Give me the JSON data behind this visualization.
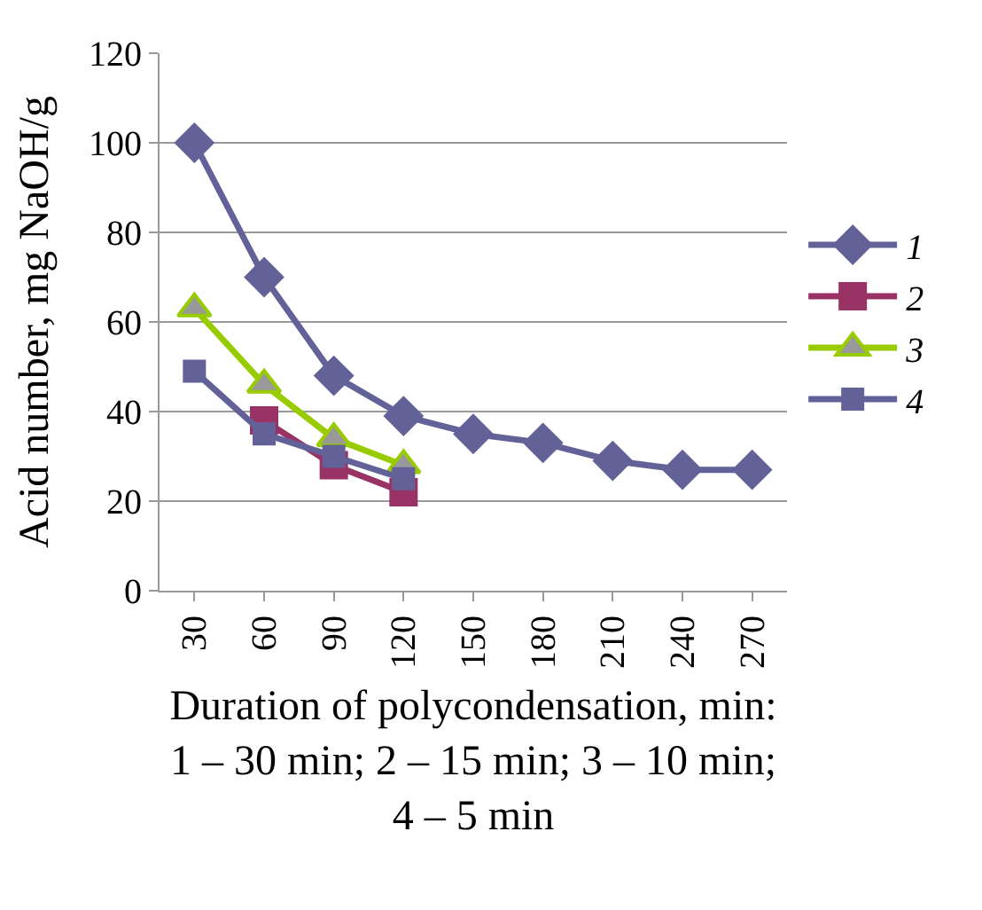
{
  "chart_data": {
    "type": "line",
    "xlabel": "Duration of polycondensation, min:\n1 – 30 min; 2 – 15 min; 3 – 10 min;\n4 – 5 min",
    "ylabel": "Acid number, mg NaOH/g",
    "categories": [
      "30",
      "60",
      "90",
      "120",
      "150",
      "180",
      "210",
      "240",
      "270"
    ],
    "series": [
      {
        "name": "1",
        "color": "#626299",
        "marker": "diamond",
        "values": [
          100,
          70,
          48,
          39,
          35,
          33,
          29,
          27,
          27
        ]
      },
      {
        "name": "2",
        "color": "#993366",
        "marker": "square",
        "values": [
          null,
          38,
          28,
          22,
          null,
          null,
          null,
          null,
          null
        ]
      },
      {
        "name": "3",
        "color": "#99cc00",
        "marker": "triangle",
        "values": [
          63,
          46,
          34,
          28,
          null,
          null,
          null,
          null,
          null
        ]
      },
      {
        "name": "4",
        "color": "#626299",
        "marker": "square",
        "values": [
          49,
          35,
          30,
          25,
          null,
          null,
          null,
          null,
          null
        ]
      }
    ],
    "ylim": [
      0,
      120
    ],
    "yticks": [
      0,
      20,
      40,
      60,
      80,
      100,
      120
    ],
    "grid": "y",
    "legend": "right"
  }
}
